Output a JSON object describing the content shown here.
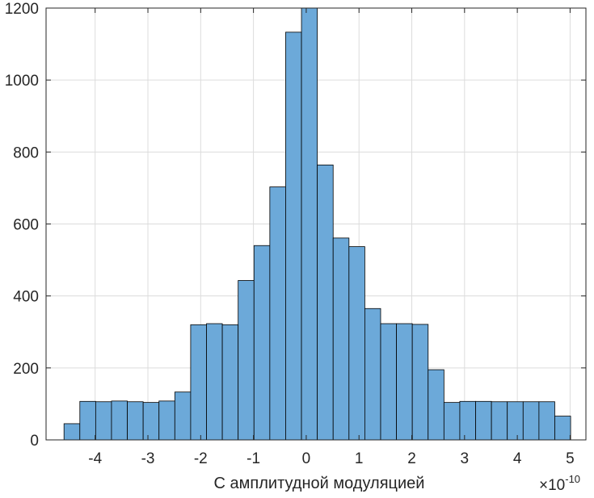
{
  "chart_data": {
    "type": "bar",
    "subtype": "histogram",
    "title": "",
    "xlabel": "С амплитудной модуляцией",
    "ylabel": "",
    "x_exponent_label": "×10",
    "x_exponent_power": "-10",
    "xlim": [
      -4.93,
      5.3
    ],
    "ylim": [
      0,
      1200
    ],
    "xticks": [
      -4,
      -3,
      -2,
      -1,
      0,
      1,
      2,
      3,
      4,
      5
    ],
    "xtick_labels": [
      "-4",
      "-3",
      "-2",
      "-1",
      "0",
      "1",
      "2",
      "3",
      "4",
      "5"
    ],
    "yticks": [
      0,
      200,
      400,
      600,
      800,
      1000,
      1200
    ],
    "ytick_labels": [
      "0",
      "200",
      "400",
      "600",
      "800",
      "1000",
      "1200"
    ],
    "grid": true,
    "bin_edges": [
      -4.59,
      -4.29,
      -3.99,
      -3.69,
      -3.39,
      -3.09,
      -2.79,
      -2.49,
      -2.19,
      -1.89,
      -1.59,
      -1.29,
      -0.99,
      -0.69,
      -0.39,
      -0.09,
      0.21,
      0.51,
      0.81,
      1.11,
      1.41,
      1.71,
      2.01,
      2.31,
      2.61,
      2.91,
      3.21,
      3.51,
      3.81,
      4.11,
      4.41,
      4.71,
      5.01
    ],
    "counts": [
      45,
      107,
      106,
      108,
      106,
      104,
      108,
      133,
      320,
      323,
      320,
      443,
      540,
      703,
      1133,
      1205,
      764,
      561,
      537,
      365,
      323,
      323,
      321,
      195,
      104,
      107,
      107,
      106,
      106,
      106,
      106,
      66
    ],
    "bar_color": "#6ca9d9",
    "edge_color": "#000000"
  }
}
